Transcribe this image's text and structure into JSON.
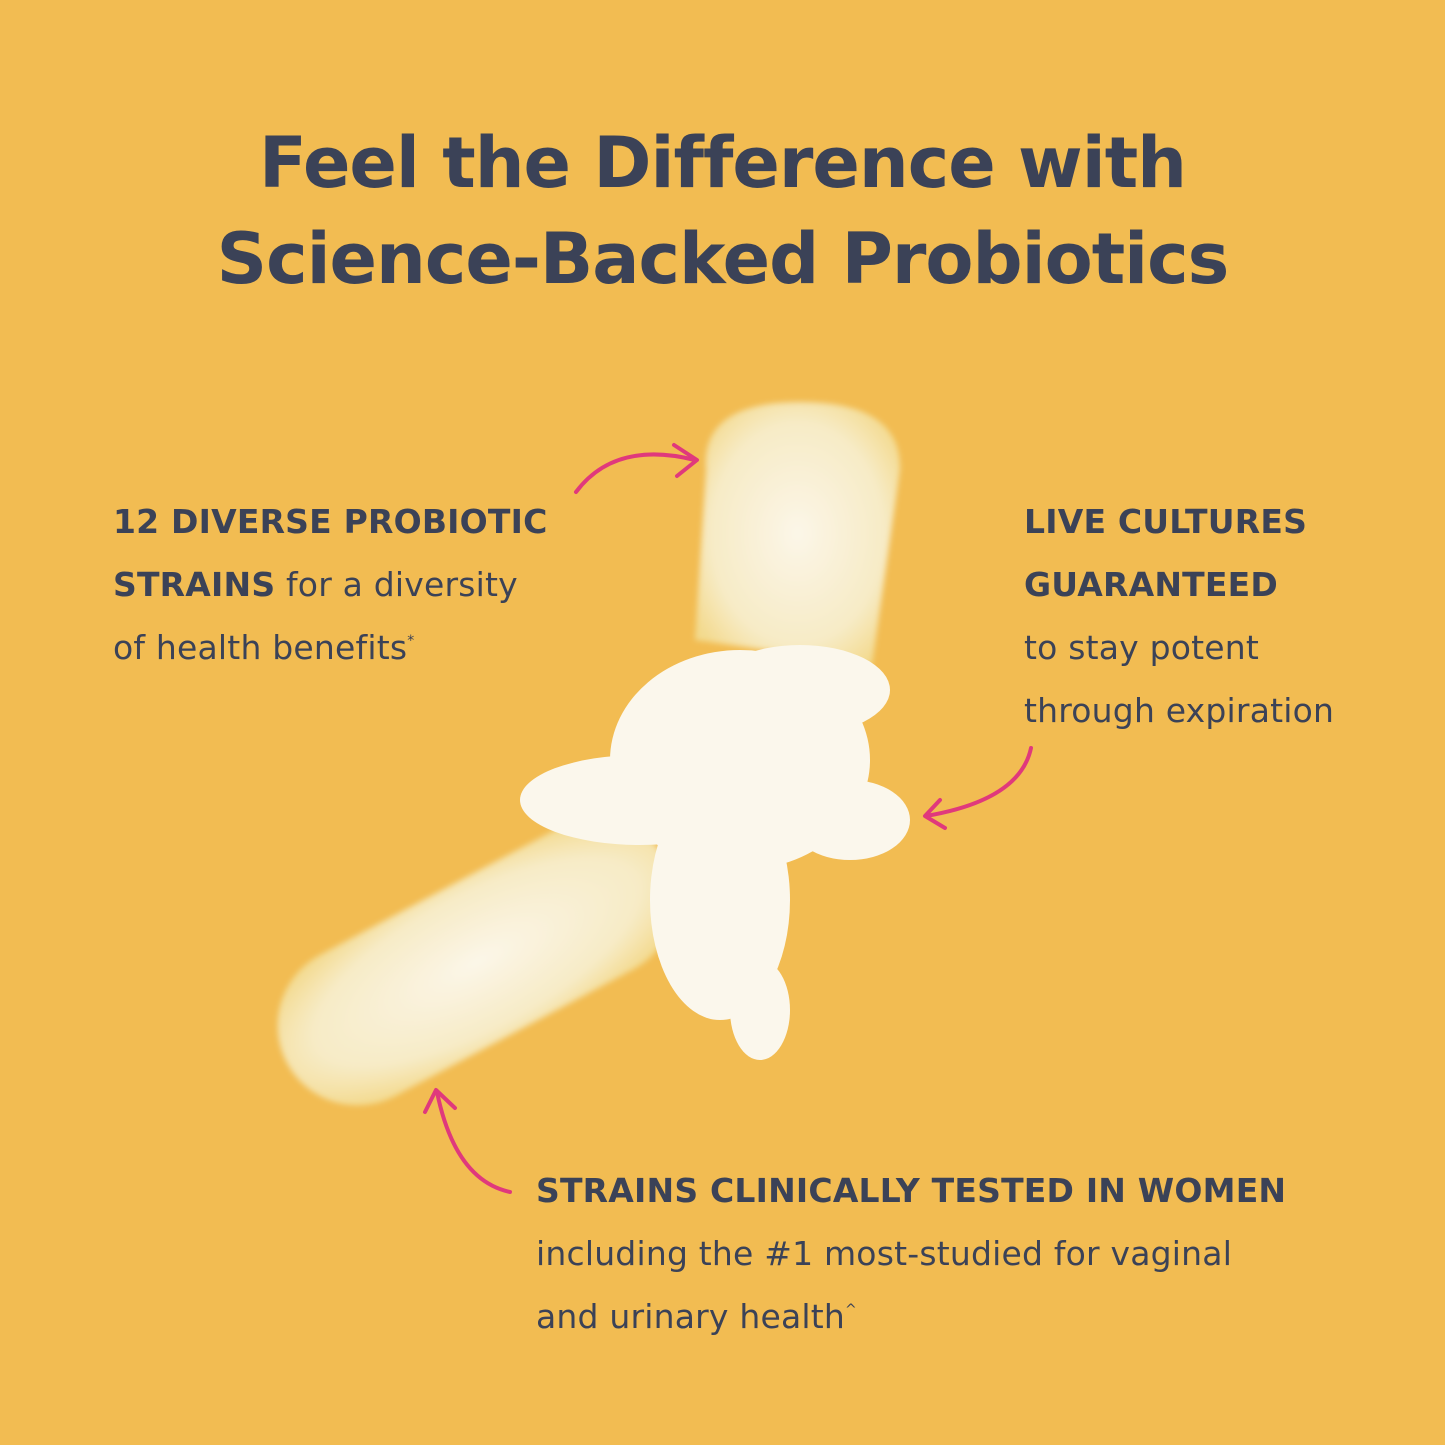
{
  "headline": {
    "line1": "Feel the Difference with",
    "line2": "Science-Backed Probiotics"
  },
  "callouts": {
    "strains": {
      "bold": "12 DIVERSE PROBIOTIC STRAINS",
      "bold_line1": "12 DIVERSE PROBIOTIC",
      "bold_line2": "STRAINS",
      "text_line2": " for a diversity",
      "text_line3": "of health benefits",
      "mark": "*"
    },
    "live": {
      "bold_line1": "LIVE CULTURES",
      "bold_line2": "GUARANTEED",
      "text_line3": "to stay potent",
      "text_line4": "through expiration"
    },
    "clinical": {
      "bold_line1": "STRAINS CLINICALLY TESTED IN WOMEN",
      "text_line2": "including the #1 most-studied for vaginal",
      "text_line3": "and urinary health",
      "mark": "^"
    }
  },
  "colors": {
    "background": "#F2BC52",
    "text": "#3B4257",
    "arrow": "#E0397C",
    "capsule": "#FBF3DD"
  },
  "icons": [
    "capsule-image",
    "arrow-icon"
  ]
}
